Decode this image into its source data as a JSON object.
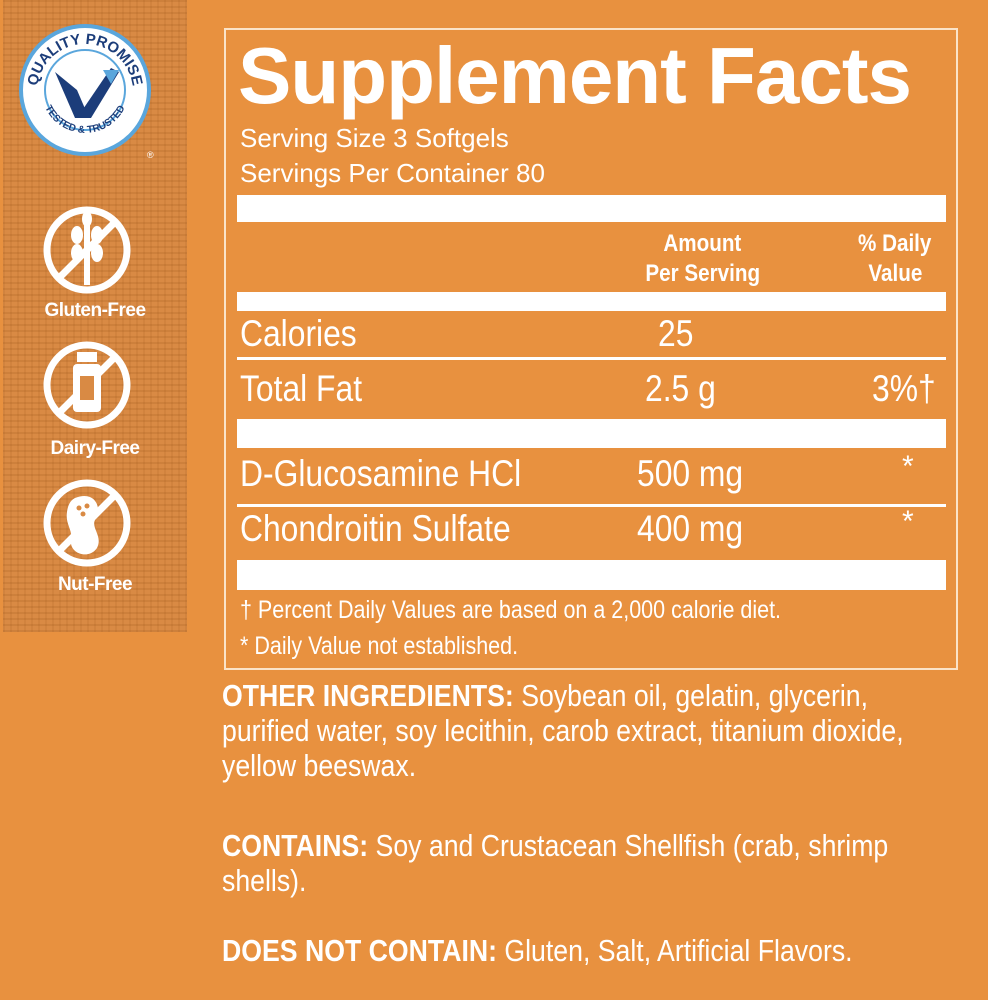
{
  "sidebar": {
    "quality_badge": {
      "top_text": "QUALITY PROMISE",
      "bottom_text": "TESTED & TRUSTED",
      "colors": {
        "navy": "#1c3d7a",
        "light_blue": "#5aa6dc"
      }
    },
    "badges": [
      {
        "icon": "no-wheat-icon",
        "label": "Gluten-Free"
      },
      {
        "icon": "no-milk-bottle-icon",
        "label": "Dairy-Free"
      },
      {
        "icon": "no-peanut-icon",
        "label": "Nut-Free"
      }
    ]
  },
  "facts": {
    "title": "Supplement Facts",
    "serving_size": "Serving Size 3 Softgels",
    "servings_per_container": "Servings Per Container 80",
    "header": {
      "amount_line1": "Amount",
      "amount_line2": "Per Serving",
      "dv_line1": "% Daily",
      "dv_line2": "Value"
    },
    "rows": [
      {
        "name": "Calories",
        "amount": "25",
        "dv": ""
      },
      {
        "name": "Total Fat",
        "amount": "2.5 g",
        "dv": "3%†"
      },
      {
        "name": "D-Glucosamine HCl",
        "amount": "500 mg",
        "dv": "*"
      },
      {
        "name": "Chondroitin Sulfate",
        "amount": "400 mg",
        "dv": "*"
      }
    ],
    "footnotes": [
      "† Percent Daily Values are based on a 2,000 calorie diet.",
      "* Daily Value not established."
    ]
  },
  "other_ingredients": {
    "label": "OTHER INGREDIENTS:",
    "text": " Soybean oil, gelatin, glycerin, purified water, soy lecithin, carob extract, titanium dioxide, yellow beeswax."
  },
  "contains": {
    "label": "CONTAINS:",
    "text": " Soy and Crustacean Shellfish (crab, shrimp shells)."
  },
  "does_not_contain": {
    "label": "DOES NOT CONTAIN:",
    "text": " Gluten, Salt, Artificial Flavors."
  },
  "colors": {
    "background": "#e8913f",
    "text": "#ffffff"
  }
}
